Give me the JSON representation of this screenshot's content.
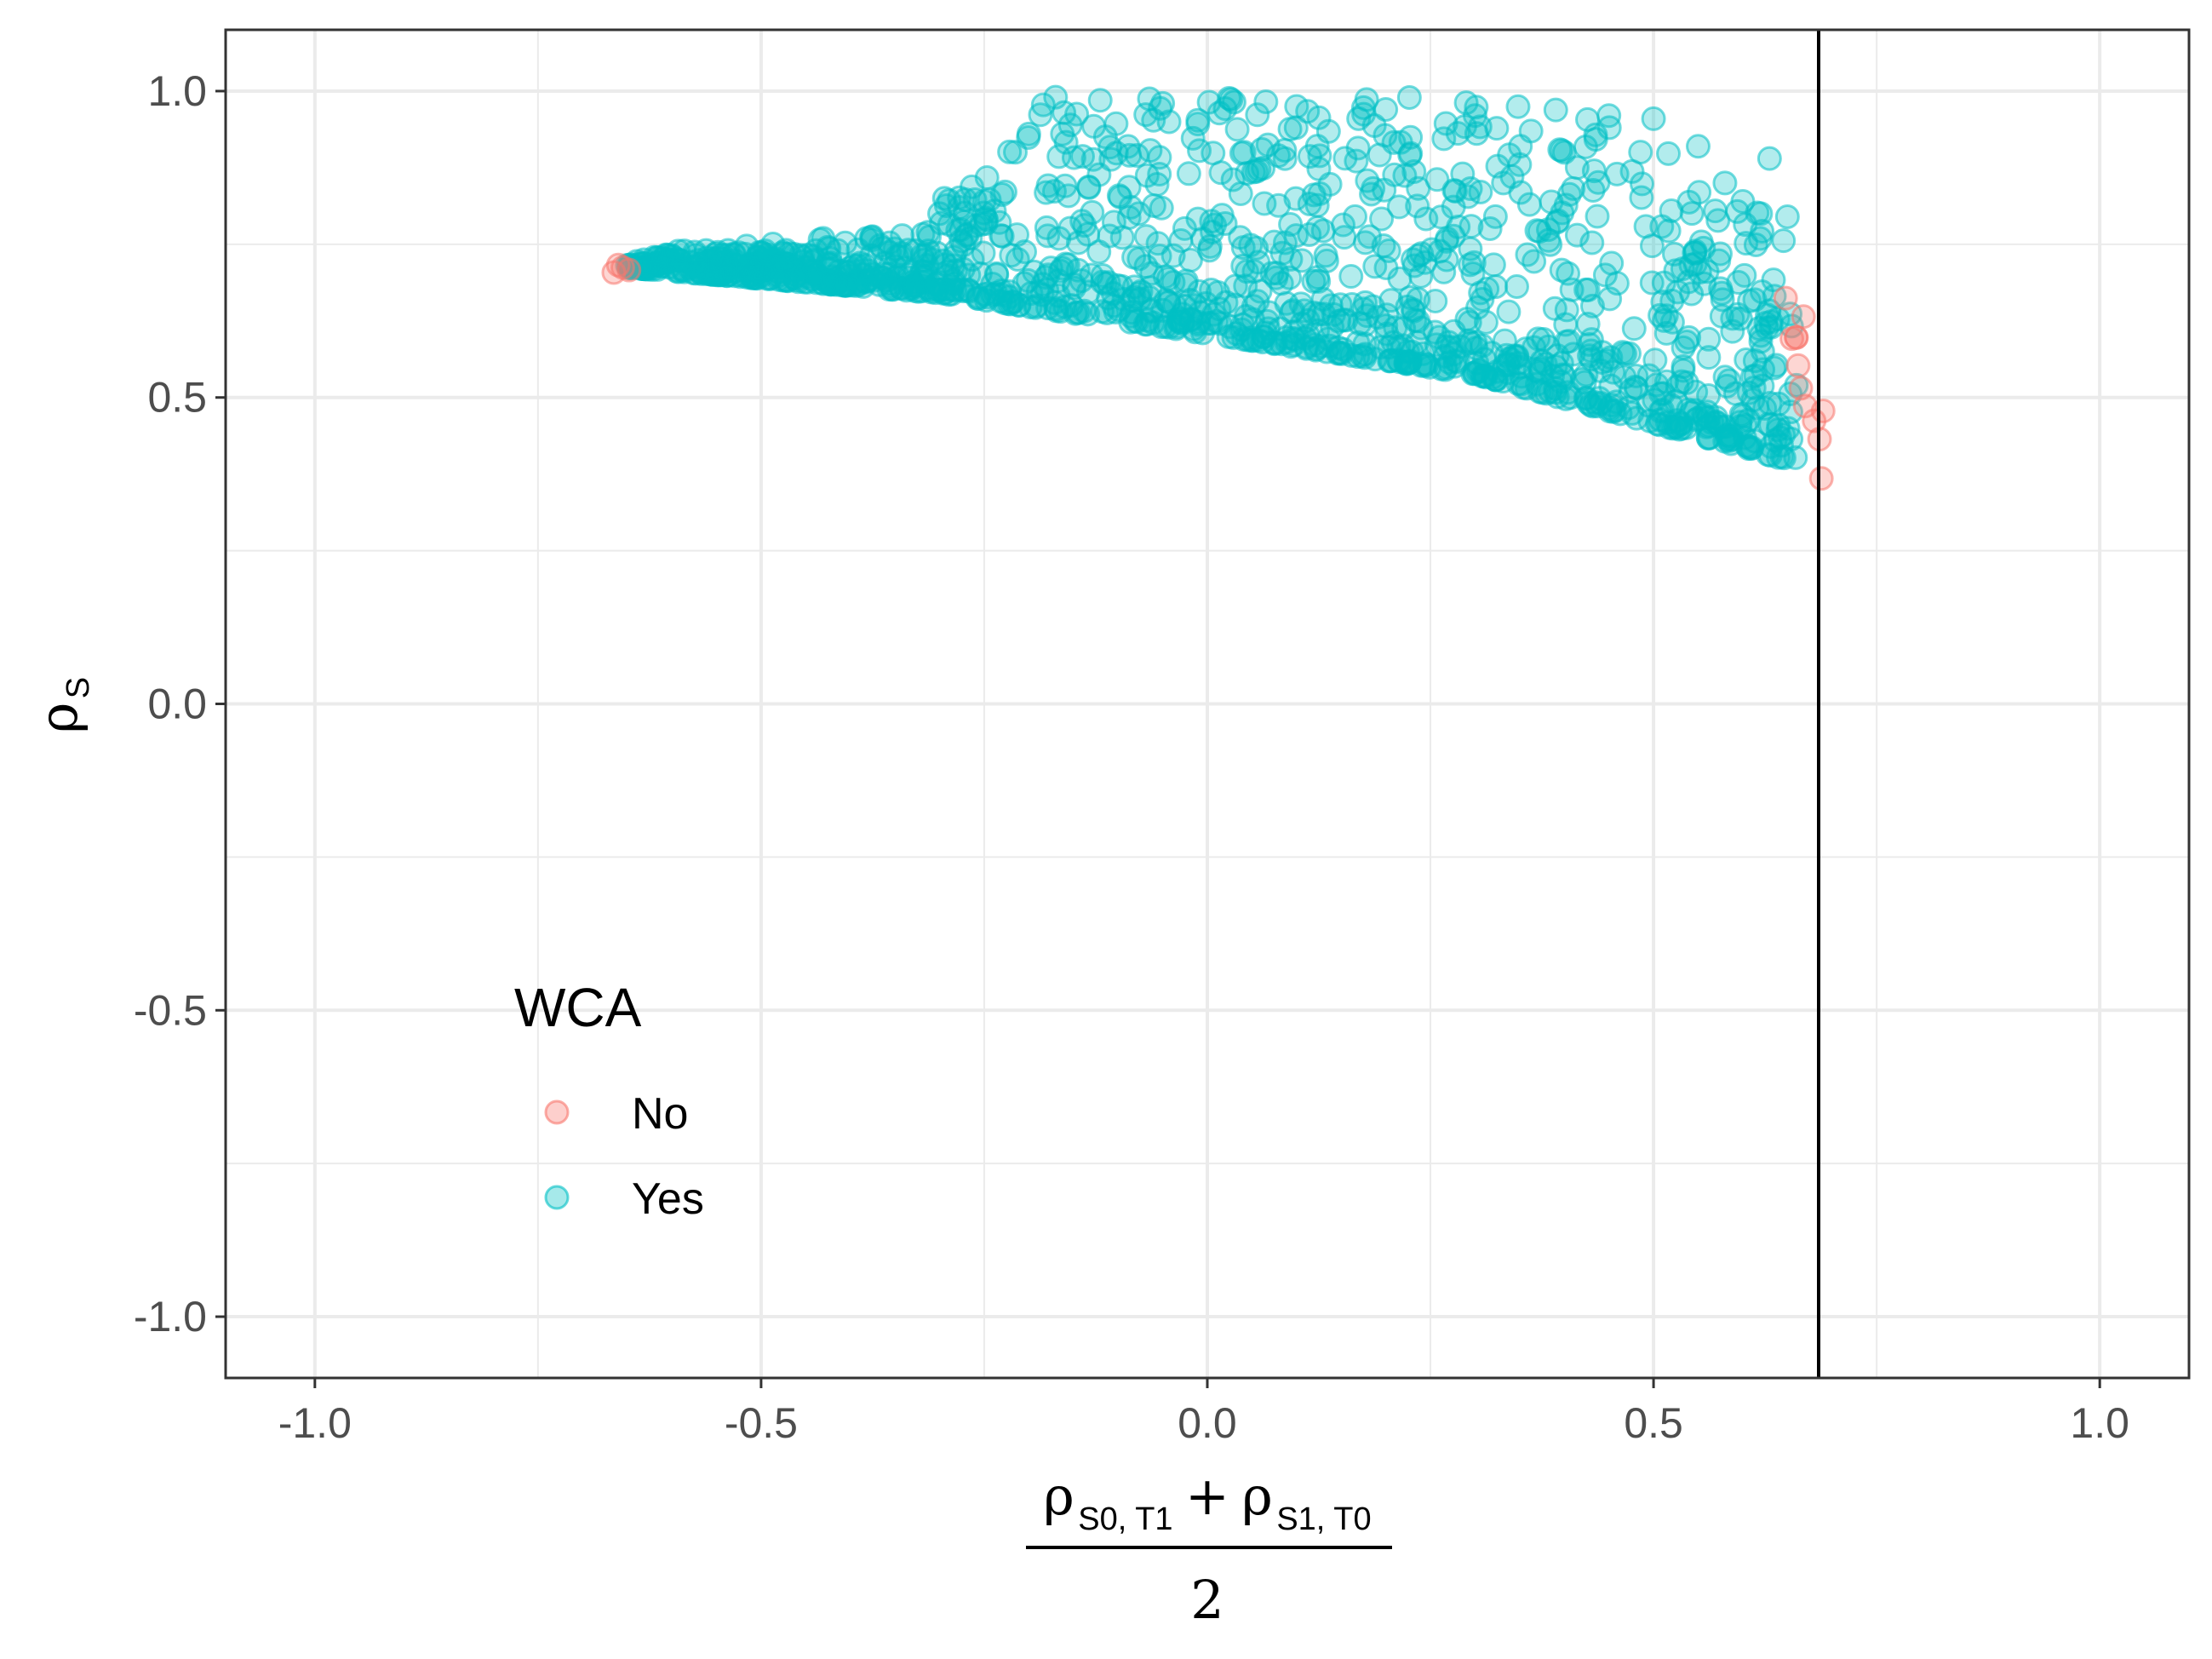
{
  "chart_data": {
    "type": "scatter",
    "xlim": [
      -1.1,
      1.1
    ],
    "ylim": [
      -1.1,
      1.1
    ],
    "x_ticks": [
      -1.0,
      -0.5,
      0.0,
      0.5,
      1.0
    ],
    "y_ticks": [
      -1.0,
      -0.5,
      0.0,
      0.5,
      1.0
    ],
    "x_tick_labels": [
      "-1.0",
      "-0.5",
      "0.0",
      "0.5",
      "1.0"
    ],
    "y_tick_labels": [
      "-1.0",
      "-0.5",
      "0.0",
      "0.5",
      "1.0"
    ],
    "xlabel": {
      "numerator_left_symbol": "ρ",
      "numerator_left_sub": "S0, T1",
      "plus": "+",
      "numerator_right_symbol": "ρ",
      "numerator_right_sub": "S1, T0",
      "denominator": "2"
    },
    "ylabel": {
      "symbol": "ρ",
      "sub": "S"
    },
    "grid": true,
    "vline_x": 0.685,
    "legend": {
      "title": "WCA",
      "placement": "bottom-left",
      "entries": [
        {
          "label": "No",
          "color": "#F8766D"
        },
        {
          "label": "Yes",
          "color": "#00BFC4"
        }
      ]
    },
    "series": [
      {
        "name": "No",
        "color": "#F8766D",
        "points": [
          [
            -0.665,
            0.704
          ],
          [
            -0.655,
            0.712
          ],
          [
            -0.648,
            0.708
          ],
          [
            -0.66,
            0.716
          ],
          [
            0.648,
            0.662
          ],
          [
            0.655,
            0.596
          ],
          [
            0.66,
            0.598
          ],
          [
            0.662,
            0.552
          ],
          [
            0.668,
            0.632
          ],
          [
            0.665,
            0.515
          ],
          [
            0.67,
            0.486
          ],
          [
            0.68,
            0.462
          ],
          [
            0.686,
            0.432
          ],
          [
            0.69,
            0.478
          ],
          [
            0.688,
            0.368
          ],
          [
            0.66,
            0.598
          ]
        ]
      },
      {
        "name": "Yes",
        "color": "#00BFC4",
        "points": [
          [
            -0.17,
            0.99
          ],
          [
            -0.12,
            0.985
          ],
          [
            -0.05,
            0.98
          ],
          [
            0.03,
            0.982
          ],
          [
            0.1,
            0.975
          ],
          [
            0.2,
            0.97
          ],
          [
            0.3,
            0.96
          ],
          [
            0.45,
            0.96
          ],
          [
            0.5,
            0.955
          ],
          [
            0.55,
            0.91
          ],
          [
            0.58,
            0.85
          ],
          [
            0.63,
            0.89
          ],
          [
            0.6,
            0.82
          ],
          [
            0.62,
            0.8
          ],
          [
            0.65,
            0.795
          ],
          [
            -0.2,
            0.93
          ],
          [
            -0.25,
            0.82
          ],
          [
            -0.3,
            0.8
          ],
          [
            0.4,
            0.9
          ],
          [
            0.35,
            0.88
          ],
          [
            0.57,
            0.46
          ],
          [
            0.6,
            0.47
          ],
          [
            0.64,
            0.455
          ],
          [
            0.66,
            0.52
          ]
        ]
      }
    ]
  }
}
